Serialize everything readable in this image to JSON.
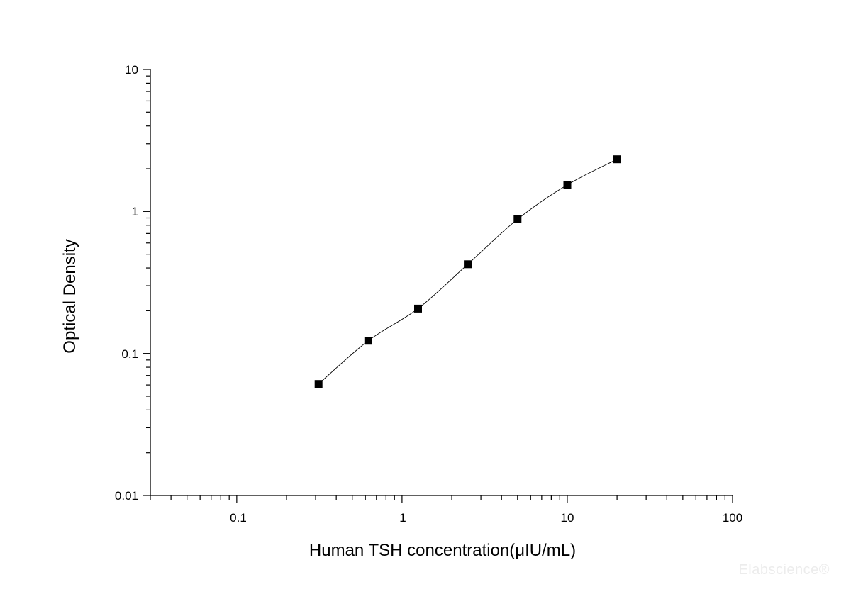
{
  "chart_data": {
    "type": "scatter",
    "xlabel": "Human TSH concentration(μIU/mL)",
    "ylabel": "Optical Density",
    "xscale": "log",
    "yscale": "log",
    "xlim": [
      0.03,
      100
    ],
    "ylim": [
      0.01,
      10
    ],
    "x_ticks": [
      "0.1",
      "1",
      "10",
      "100"
    ],
    "y_ticks": [
      "0.01",
      "0.1",
      "1",
      "10"
    ],
    "grid": false,
    "legend": "none",
    "fit_curve": true,
    "marker_color": "#000000",
    "series": [
      {
        "x": [
          0.3125,
          0.625,
          1.25,
          2.5,
          5,
          10,
          20
        ],
        "y": [
          0.061,
          0.123,
          0.207,
          0.425,
          0.882,
          1.54,
          2.33
        ]
      }
    ]
  },
  "watermark": "Elabscience®"
}
